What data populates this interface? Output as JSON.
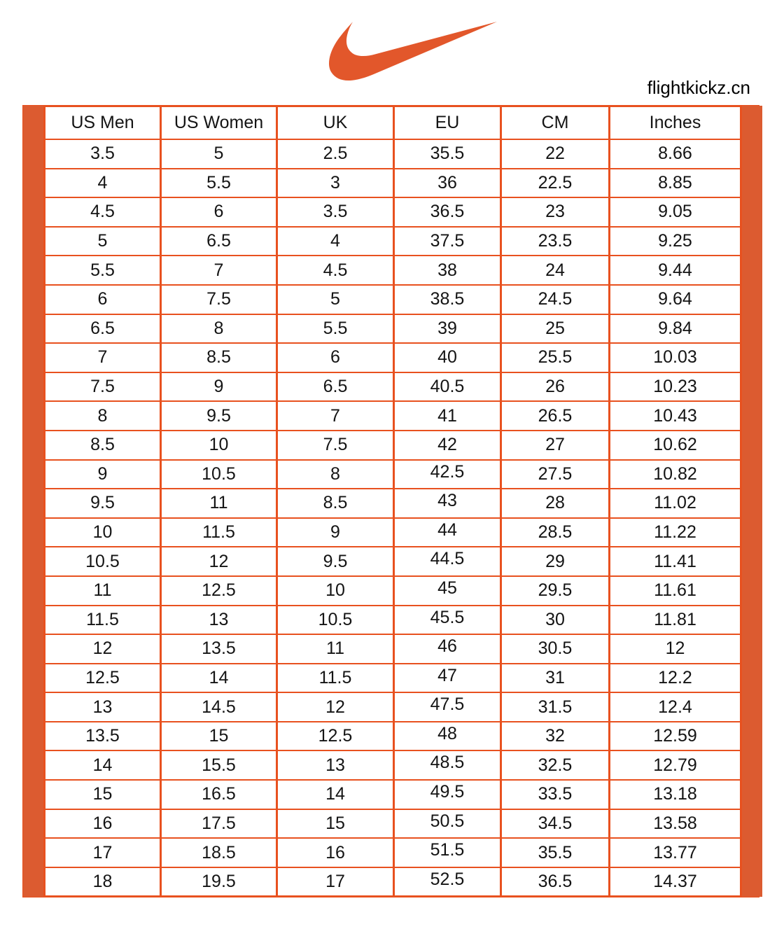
{
  "header": {
    "logo": "nike-swoosh",
    "watermark": "flightkickz.cn"
  },
  "colors": {
    "swoosh": "#E2572B",
    "grid": "#E8511F",
    "bar": "#DC5B30",
    "text": "#141414",
    "background": "#FFFFFF"
  },
  "chart_data": {
    "type": "table",
    "columns": [
      "US Men",
      "US Women",
      "UK",
      "EU",
      "CM",
      "Inches"
    ],
    "rows": [
      [
        "3.5",
        "5",
        "2.5",
        "35.5",
        "22",
        "8.66"
      ],
      [
        "4",
        "5.5",
        "3",
        "36",
        "22.5",
        "8.85"
      ],
      [
        "4.5",
        "6",
        "3.5",
        "36.5",
        "23",
        "9.05"
      ],
      [
        "5",
        "6.5",
        "4",
        "37.5",
        "23.5",
        "9.25"
      ],
      [
        "5.5",
        "7",
        "4.5",
        "38",
        "24",
        "9.44"
      ],
      [
        "6",
        "7.5",
        "5",
        "38.5",
        "24.5",
        "9.64"
      ],
      [
        "6.5",
        "8",
        "5.5",
        "39",
        "25",
        "9.84"
      ],
      [
        "7",
        "8.5",
        "6",
        "40",
        "25.5",
        "10.03"
      ],
      [
        "7.5",
        "9",
        "6.5",
        "40.5",
        "26",
        "10.23"
      ],
      [
        "8",
        "9.5",
        "7",
        "41",
        "26.5",
        "10.43"
      ],
      [
        "8.5",
        "10",
        "7.5",
        "42",
        "27",
        "10.62"
      ],
      [
        "9",
        "10.5",
        "8",
        "42.5",
        "27.5",
        "10.82"
      ],
      [
        "9.5",
        "11",
        "8.5",
        "43",
        "28",
        "11.02"
      ],
      [
        "10",
        "11.5",
        "9",
        "44",
        "28.5",
        "11.22"
      ],
      [
        "10.5",
        "12",
        "9.5",
        "44.5",
        "29",
        "11.41"
      ],
      [
        "11",
        "12.5",
        "10",
        "45",
        "29.5",
        "11.61"
      ],
      [
        "11.5",
        "13",
        "10.5",
        "45.5",
        "30",
        "11.81"
      ],
      [
        "12",
        "13.5",
        "11",
        "46",
        "30.5",
        "12"
      ],
      [
        "12.5",
        "14",
        "11.5",
        "47",
        "31",
        "12.2"
      ],
      [
        "13",
        "14.5",
        "12",
        "47.5",
        "31.5",
        "12.4"
      ],
      [
        "13.5",
        "15",
        "12.5",
        "48",
        "32",
        "12.59"
      ],
      [
        "14",
        "15.5",
        "13",
        "48.5",
        "32.5",
        "12.79"
      ],
      [
        "15",
        "16.5",
        "14",
        "49.5",
        "33.5",
        "13.18"
      ],
      [
        "16",
        "17.5",
        "15",
        "50.5",
        "34.5",
        "13.58"
      ],
      [
        "17",
        "18.5",
        "16",
        "51.5",
        "35.5",
        "13.77"
      ],
      [
        "18",
        "19.5",
        "17",
        "52.5",
        "36.5",
        "14.37"
      ]
    ]
  }
}
